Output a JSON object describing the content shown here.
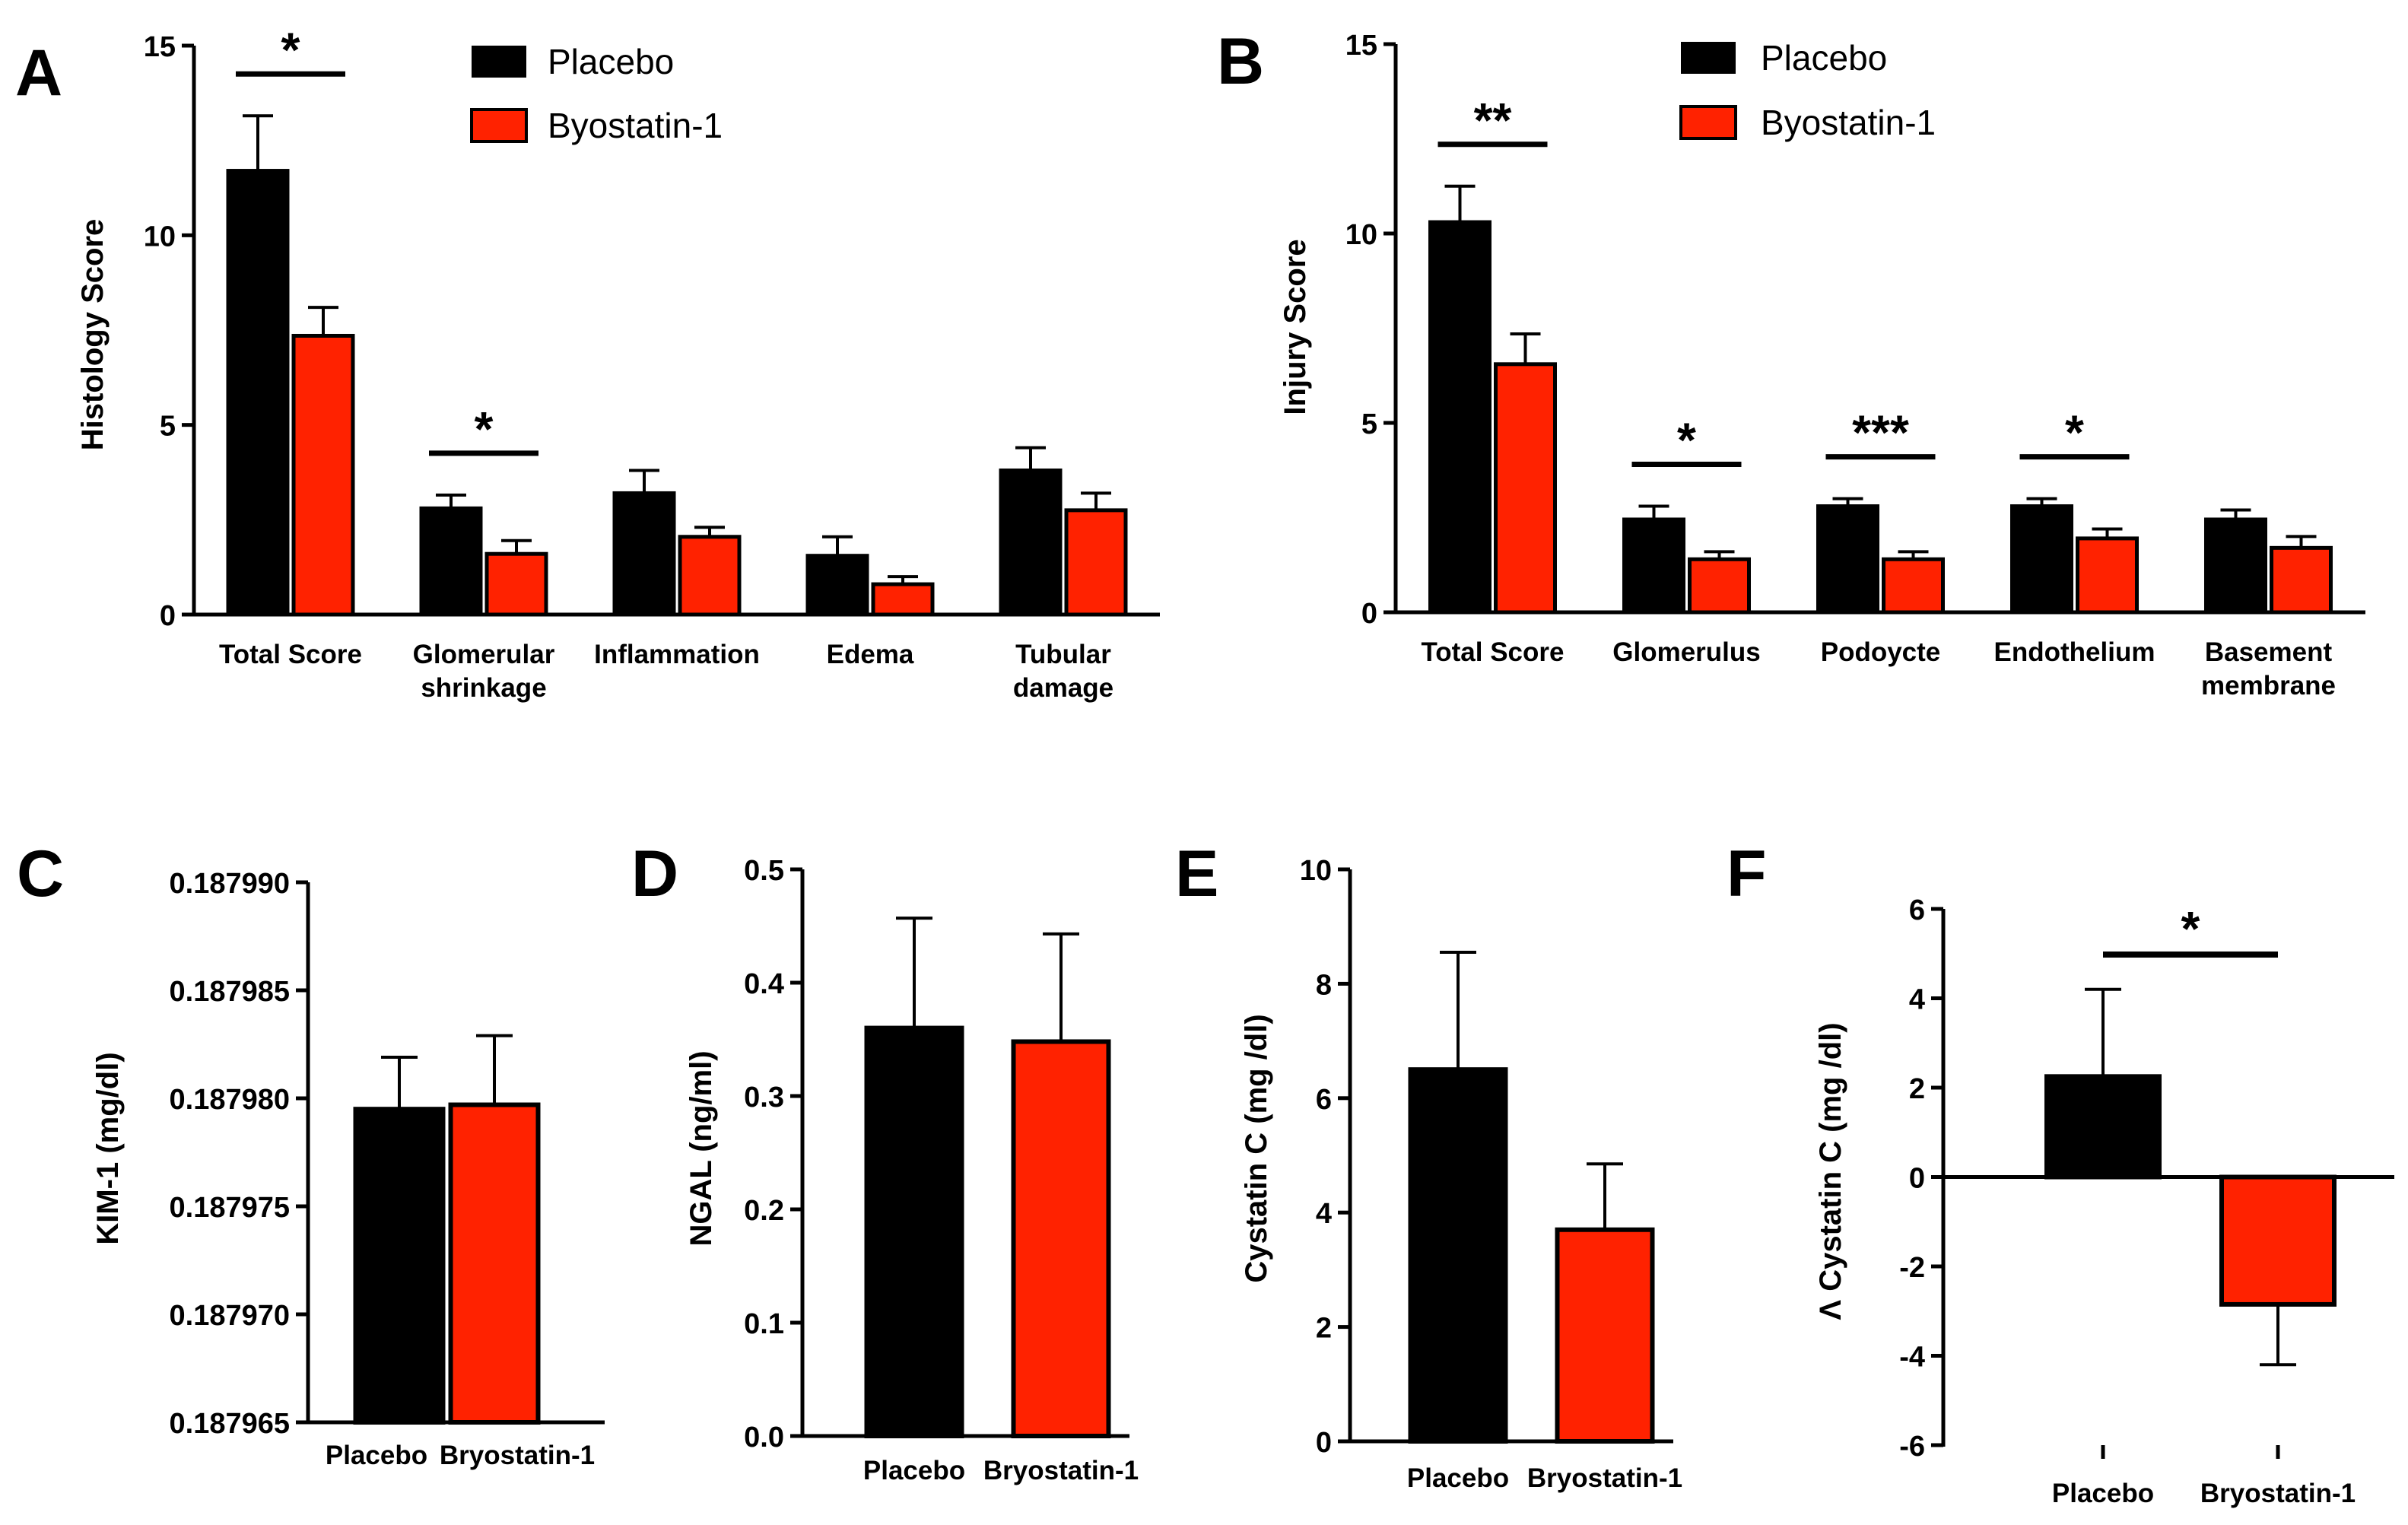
{
  "colors": {
    "placebo": "#000000",
    "byostatin": "#ff2200",
    "axis": "#000000"
  },
  "chart_data": [
    {
      "panel": "A",
      "type": "bar",
      "ylabel": "Histology Score",
      "ylim": [
        0,
        15
      ],
      "yticks": [
        "0",
        "5",
        "10",
        "15"
      ],
      "categories": [
        [
          "Total Score"
        ],
        [
          "Glomerular",
          "shrinkage"
        ],
        [
          "Inflammation"
        ],
        [
          "Edema"
        ],
        [
          "Tubular",
          "damage"
        ]
      ],
      "series": [
        {
          "name": "Placebo",
          "values": [
            11.7,
            2.8,
            3.2,
            1.55,
            3.8
          ],
          "errors": [
            1.45,
            0.35,
            0.6,
            0.5,
            0.6
          ]
        },
        {
          "name": "Byostatin-1",
          "values": [
            7.35,
            1.6,
            2.05,
            0.8,
            2.75
          ],
          "errors": [
            0.75,
            0.35,
            0.25,
            0.2,
            0.45
          ]
        }
      ],
      "legend": [
        "Placebo",
        "Byostatin-1"
      ],
      "significance": [
        {
          "category": 0,
          "label": "*"
        },
        {
          "category": 1,
          "label": "*"
        }
      ]
    },
    {
      "panel": "B",
      "type": "bar",
      "ylabel": "Injury Score",
      "ylim": [
        0,
        15
      ],
      "yticks": [
        "0",
        "5",
        "10",
        "15"
      ],
      "categories": [
        [
          "Total Score"
        ],
        [
          "Glomerulus"
        ],
        [
          "Podoycte"
        ],
        [
          "Endothelium"
        ],
        [
          "Basement",
          "membrane"
        ]
      ],
      "series": [
        {
          "name": "Placebo",
          "values": [
            10.3,
            2.45,
            2.8,
            2.8,
            2.45
          ],
          "errors": [
            0.95,
            0.35,
            0.2,
            0.2,
            0.25
          ]
        },
        {
          "name": "Byostatin-1",
          "values": [
            6.55,
            1.4,
            1.4,
            1.95,
            1.7
          ],
          "errors": [
            0.8,
            0.2,
            0.2,
            0.25,
            0.3
          ]
        }
      ],
      "legend": [
        "Placebo",
        "Byostatin-1"
      ],
      "significance": [
        {
          "category": 0,
          "label": "**"
        },
        {
          "category": 1,
          "label": "*"
        },
        {
          "category": 2,
          "label": "***"
        },
        {
          "category": 3,
          "label": "*"
        }
      ]
    },
    {
      "panel": "C",
      "type": "bar",
      "ylabel": "KIM-1 (mg/dl)",
      "ylim": [
        0.187965,
        0.18799
      ],
      "yticks": [
        "0.187965",
        "0.187970",
        "0.187975",
        "0.187980",
        "0.187985",
        "0.187990"
      ],
      "categories": [
        "Placebo",
        "Bryostatin-1"
      ],
      "values": [
        0.1879795,
        0.1879797
      ],
      "errors": [
        2.4e-06,
        3.2e-06
      ]
    },
    {
      "panel": "D",
      "type": "bar",
      "ylabel": "NGAL (ng/ml)",
      "ylim": [
        0,
        0.5
      ],
      "yticks": [
        "0.0",
        "0.1",
        "0.2",
        "0.3",
        "0.4",
        "0.5"
      ],
      "categories": [
        "Placebo",
        "Bryostatin-1"
      ],
      "values": [
        0.36,
        0.348
      ],
      "errors": [
        0.097,
        0.095
      ]
    },
    {
      "panel": "E",
      "type": "bar",
      "ylabel": "Cystatin C (mg /dl)",
      "ylim": [
        0,
        10
      ],
      "yticks": [
        "0",
        "2",
        "4",
        "6",
        "8",
        "10"
      ],
      "categories": [
        "Placebo",
        "Bryostatin-1"
      ],
      "values": [
        6.5,
        3.7
      ],
      "errors": [
        2.05,
        1.15
      ]
    },
    {
      "panel": "F",
      "type": "bar",
      "ylabel": "Λ Cystatin C (mg /dl)",
      "ylim": [
        -6,
        6
      ],
      "yticks": [
        "-6",
        "-4",
        "-2",
        "0",
        "2",
        "4",
        "6"
      ],
      "categories": [
        "Placebo",
        "Bryostatin-1"
      ],
      "values": [
        2.25,
        -2.85
      ],
      "errors": [
        1.95,
        1.35
      ],
      "significance": [
        {
          "label": "*"
        }
      ]
    }
  ]
}
